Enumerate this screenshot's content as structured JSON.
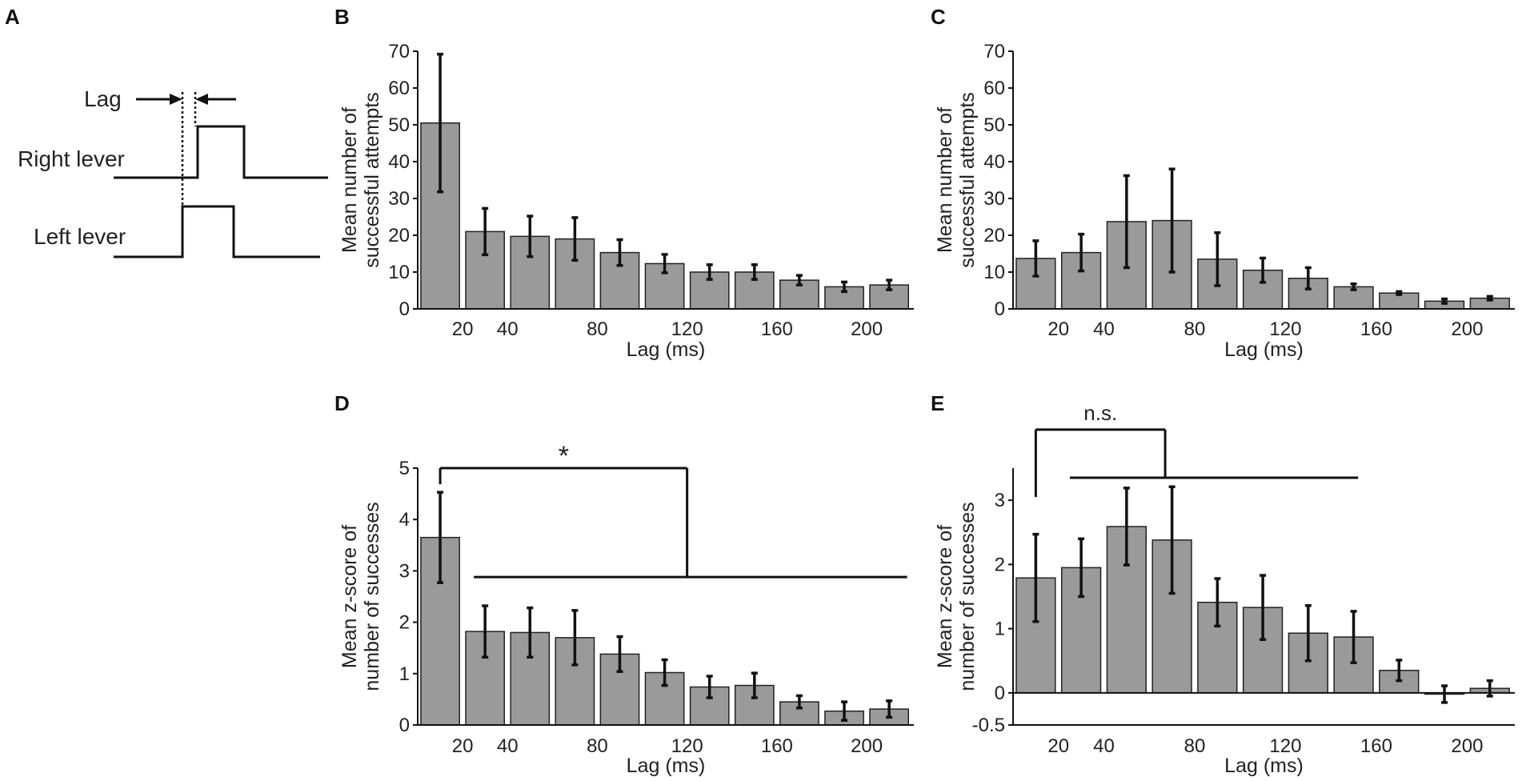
{
  "panel_a": {
    "letter": "A",
    "lag_label": "Lag",
    "right_lever_label": "Right lever",
    "left_lever_label": "Left lever"
  },
  "chart_data": [
    {
      "panel": "B",
      "type": "bar",
      "title": "",
      "xlabel": "Lag (ms)",
      "ylabel_lines": [
        "Mean number of",
        "successful attempts"
      ],
      "categories": [
        10,
        30,
        50,
        70,
        90,
        110,
        130,
        150,
        170,
        190,
        210
      ],
      "xtick_labels": [
        "20",
        "40",
        "80",
        "120",
        "160",
        "200"
      ],
      "xtick_positions": [
        20,
        40,
        80,
        120,
        160,
        200
      ],
      "yticks": [
        0,
        10,
        20,
        30,
        40,
        50,
        60,
        70
      ],
      "ylim": [
        0,
        70
      ],
      "values": [
        50.5,
        21,
        19.7,
        19,
        15.3,
        12.3,
        10,
        10,
        7.8,
        6,
        6.5
      ],
      "errors": [
        18.7,
        6.3,
        5.5,
        5.8,
        3.5,
        2.5,
        2,
        2,
        1.3,
        1.3,
        1.3
      ]
    },
    {
      "panel": "C",
      "type": "bar",
      "title": "",
      "xlabel": "Lag (ms)",
      "ylabel_lines": [
        "Mean number of",
        "successful attempts"
      ],
      "categories": [
        10,
        30,
        50,
        70,
        90,
        110,
        130,
        150,
        170,
        190,
        210
      ],
      "xtick_labels": [
        "20",
        "40",
        "80",
        "120",
        "160",
        "200"
      ],
      "xtick_positions": [
        20,
        40,
        80,
        120,
        160,
        200
      ],
      "yticks": [
        0,
        10,
        20,
        30,
        40,
        50,
        60,
        70
      ],
      "ylim": [
        0,
        70
      ],
      "values": [
        13.7,
        15.3,
        23.7,
        24,
        13.5,
        10.5,
        8.3,
        6,
        4.3,
        2.1,
        2.9
      ],
      "errors": [
        4.8,
        5,
        12.5,
        14,
        7.2,
        3.3,
        2.9,
        0.8,
        0.4,
        0.6,
        0.5
      ]
    },
    {
      "panel": "D",
      "type": "bar",
      "title": "",
      "xlabel": "Lag (ms)",
      "ylabel_lines": [
        "Mean z-score of",
        "number of successes"
      ],
      "categories": [
        10,
        30,
        50,
        70,
        90,
        110,
        130,
        150,
        170,
        190,
        210
      ],
      "xtick_labels": [
        "20",
        "40",
        "80",
        "120",
        "160",
        "200"
      ],
      "xtick_positions": [
        20,
        40,
        80,
        120,
        160,
        200
      ],
      "yticks": [
        0,
        1,
        2,
        3,
        4,
        5
      ],
      "ylim": [
        0,
        5
      ],
      "values": [
        3.65,
        1.82,
        1.8,
        1.7,
        1.38,
        1.02,
        0.74,
        0.77,
        0.45,
        0.27,
        0.31
      ],
      "errors": [
        0.88,
        0.5,
        0.48,
        0.53,
        0.34,
        0.25,
        0.21,
        0.24,
        0.12,
        0.18,
        0.16
      ],
      "annotation": {
        "label": "*",
        "left_x": 10,
        "left_y": 5.0,
        "split_x": 120,
        "lower_y": 2.88,
        "lower_from_x": 25,
        "lower_to_x": 218
      }
    },
    {
      "panel": "E",
      "type": "bar",
      "title": "",
      "xlabel": "Lag (ms)",
      "ylabel_lines": [
        "Mean z-score of",
        "number of successes"
      ],
      "categories": [
        10,
        30,
        50,
        70,
        90,
        110,
        130,
        150,
        170,
        190,
        210
      ],
      "xtick_labels": [
        "20",
        "40",
        "80",
        "120",
        "160",
        "200"
      ],
      "xtick_positions": [
        20,
        40,
        80,
        120,
        160,
        200
      ],
      "ytick_labels": [
        "-0.5",
        "0",
        "1",
        "2",
        "3"
      ],
      "yticks": [
        -0.5,
        0,
        1,
        2,
        3
      ],
      "ylim": [
        -0.5,
        3.5
      ],
      "values": [
        1.79,
        1.95,
        2.59,
        2.38,
        1.41,
        1.33,
        0.93,
        0.87,
        0.35,
        -0.02,
        0.07
      ],
      "errors": [
        0.68,
        0.45,
        0.6,
        0.83,
        0.37,
        0.5,
        0.43,
        0.4,
        0.16,
        0.13,
        0.12
      ],
      "annotation": {
        "label": "n.s.",
        "left_x": 10,
        "left_y": 4.1,
        "split_x": 67,
        "lower_y": 3.35,
        "lower_from_x": 25,
        "lower_to_x": 152
      }
    }
  ]
}
